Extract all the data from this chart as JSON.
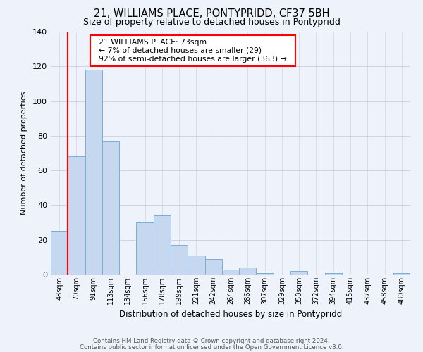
{
  "title": "21, WILLIAMS PLACE, PONTYPRIDD, CF37 5BH",
  "subtitle": "Size of property relative to detached houses in Pontypridd",
  "xlabel": "Distribution of detached houses by size in Pontypridd",
  "ylabel": "Number of detached properties",
  "bar_labels": [
    "48sqm",
    "70sqm",
    "91sqm",
    "113sqm",
    "134sqm",
    "156sqm",
    "178sqm",
    "199sqm",
    "221sqm",
    "242sqm",
    "264sqm",
    "286sqm",
    "307sqm",
    "329sqm",
    "350sqm",
    "372sqm",
    "394sqm",
    "415sqm",
    "437sqm",
    "458sqm",
    "480sqm"
  ],
  "bar_values": [
    25,
    68,
    118,
    77,
    0,
    30,
    34,
    17,
    11,
    9,
    3,
    4,
    1,
    0,
    2,
    0,
    1,
    0,
    0,
    0,
    1
  ],
  "bar_color": "#c5d8f0",
  "bar_edge_color": "#7aaed6",
  "ylim": [
    0,
    140
  ],
  "yticks": [
    0,
    20,
    40,
    60,
    80,
    100,
    120,
    140
  ],
  "red_line_x": 0.5,
  "annotation_title": "21 WILLIAMS PLACE: 73sqm",
  "annotation_line1": "← 7% of detached houses are smaller (29)",
  "annotation_line2": "92% of semi-detached houses are larger (363) →",
  "footer_line1": "Contains HM Land Registry data © Crown copyright and database right 2024.",
  "footer_line2": "Contains public sector information licensed under the Open Government Licence v3.0.",
  "bg_color": "#eef2fb",
  "plot_bg_color": "#eef2fb",
  "grid_color": "#c8d0e0"
}
